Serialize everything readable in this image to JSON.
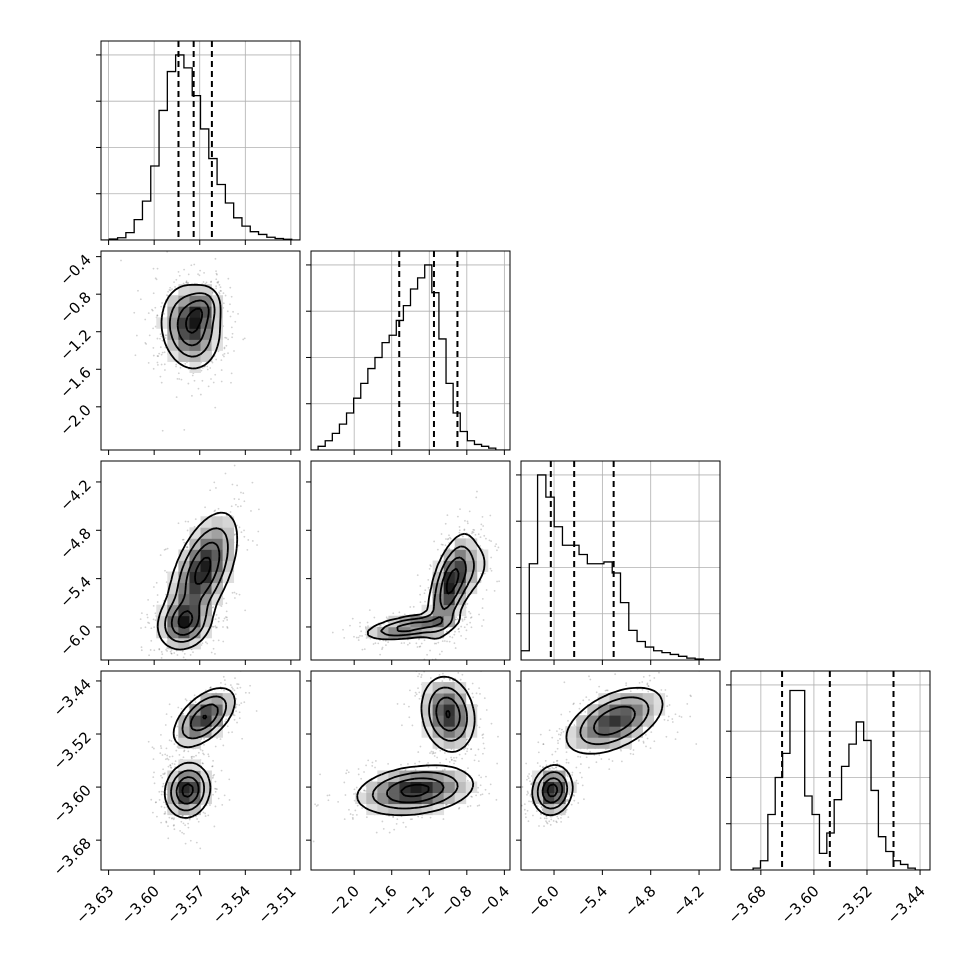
{
  "chart_data": {
    "type": "corner",
    "parameters": [
      {
        "range": [
          -3.635,
          -3.504
        ],
        "ticks": [
          "−3.63",
          "−3.60",
          "−3.57",
          "−3.54",
          "−3.51"
        ],
        "tick_values": [
          -3.63,
          -3.6,
          -3.57,
          -3.54,
          -3.51
        ],
        "quantiles": [
          -3.584,
          -3.574,
          -3.562
        ],
        "histogram": [
          0,
          0.005,
          0.012,
          0.04,
          0.11,
          0.21,
          0.4,
          0.7,
          0.91,
          1.0,
          0.93,
          0.78,
          0.6,
          0.44,
          0.3,
          0.2,
          0.12,
          0.075,
          0.045,
          0.03,
          0.015,
          0.008,
          0.004,
          0
        ]
      },
      {
        "range": [
          -2.46,
          -0.34
        ],
        "ticks": [
          "−2.0",
          "−1.6",
          "−1.2",
          "−0.8",
          "−0.4"
        ],
        "tick_values": [
          -2.0,
          -1.6,
          -1.2,
          -0.8,
          -0.4
        ],
        "quantiles": [
          -1.52,
          -1.15,
          -0.9
        ],
        "histogram": [
          0,
          0.02,
          0.05,
          0.09,
          0.14,
          0.2,
          0.28,
          0.36,
          0.44,
          0.5,
          0.58,
          0.62,
          0.7,
          0.78,
          0.87,
          0.93,
          1.0,
          0.85,
          0.6,
          0.36,
          0.2,
          0.1,
          0.05,
          0.03,
          0.02,
          0.01,
          0,
          0
        ]
      },
      {
        "range": [
          -6.41,
          -3.94
        ],
        "ticks": [
          "−6.0",
          "−5.4",
          "−4.8",
          "−4.2"
        ],
        "tick_values": [
          -6.0,
          -5.4,
          -4.8,
          -4.2
        ],
        "quantiles": [
          -6.04,
          -5.75,
          -5.26
        ],
        "histogram": [
          0.05,
          0.52,
          1.0,
          0.88,
          0.72,
          0.62,
          0.62,
          0.57,
          0.52,
          0.52,
          0.53,
          0.47,
          0.31,
          0.16,
          0.1,
          0.07,
          0.05,
          0.04,
          0.03,
          0.02,
          0.01,
          0.005,
          0,
          0
        ]
      },
      {
        "range": [
          -3.725,
          -3.425
        ],
        "ticks": [
          "−3.68",
          "−3.60",
          "−3.52",
          "−3.44"
        ],
        "tick_values": [
          -3.68,
          -3.6,
          -3.52,
          -3.44
        ],
        "quantiles": [
          -3.648,
          -3.576,
          -3.48
        ],
        "histogram": [
          0,
          0,
          0,
          0.01,
          0.05,
          0.3,
          0.5,
          0.63,
          0.97,
          0.97,
          0.4,
          0.3,
          0.09,
          0.2,
          0.38,
          0.56,
          0.68,
          0.8,
          0.7,
          0.43,
          0.18,
          0.1,
          0.05,
          0.03,
          0.01,
          0,
          0
        ]
      }
    ],
    "pairs": [
      {
        "col": 0,
        "row": 1,
        "components": [
          {
            "mean": [
              -3.576,
              -1.15
            ],
            "sd": [
              0.0095,
              0.22
            ],
            "corr": -0.1,
            "weight": 1.0
          },
          {
            "mean": [
              -3.568,
              -0.95
            ],
            "sd": [
              0.006,
              0.12
            ],
            "corr": 0.2,
            "weight": 0.5
          }
        ]
      },
      {
        "col": 0,
        "row": 2,
        "components": [
          {
            "mean": [
              -3.58,
              -5.95
            ],
            "sd": [
              0.0085,
              0.16
            ],
            "corr": 0.15,
            "weight": 1.0
          },
          {
            "mean": [
              -3.568,
              -5.3
            ],
            "sd": [
              0.011,
              0.35
            ],
            "corr": 0.55,
            "weight": 1.2
          }
        ]
      },
      {
        "col": 1,
        "row": 2,
        "components": [
          {
            "mean": [
              -1.4,
              -6.0
            ],
            "sd": [
              0.24,
              0.08
            ],
            "corr": 0.5,
            "weight": 1.0
          },
          {
            "mean": [
              -0.98,
              -5.5
            ],
            "sd": [
              0.12,
              0.32
            ],
            "corr": 0.6,
            "weight": 1.1
          },
          {
            "mean": [
              -0.82,
              -5.3
            ],
            "sd": [
              0.15,
              0.2
            ],
            "corr": 0.3,
            "weight": 0.4
          }
        ]
      },
      {
        "col": 0,
        "row": 3,
        "components": [
          {
            "mean": [
              -3.578,
              -3.605
            ],
            "sd": [
              0.0072,
              0.02
            ],
            "corr": 0.1,
            "weight": 1.0
          },
          {
            "mean": [
              -3.567,
              -3.495
            ],
            "sd": [
              0.01,
              0.022
            ],
            "corr": 0.55,
            "weight": 0.9
          }
        ]
      },
      {
        "col": 1,
        "row": 3,
        "components": [
          {
            "mean": [
              -1.35,
              -3.605
            ],
            "sd": [
              0.3,
              0.018
            ],
            "corr": 0.25,
            "weight": 1.0
          },
          {
            "mean": [
              -1.0,
              -3.49
            ],
            "sd": [
              0.14,
              0.028
            ],
            "corr": -0.15,
            "weight": 0.9
          }
        ]
      },
      {
        "col": 2,
        "row": 3,
        "components": [
          {
            "mean": [
              -6.02,
              -3.605
            ],
            "sd": [
              0.12,
              0.018
            ],
            "corr": 0.1,
            "weight": 1.0
          },
          {
            "mean": [
              -5.25,
              -3.5
            ],
            "sd": [
              0.3,
              0.025
            ],
            "corr": 0.5,
            "weight": 0.85
          }
        ]
      }
    ]
  }
}
